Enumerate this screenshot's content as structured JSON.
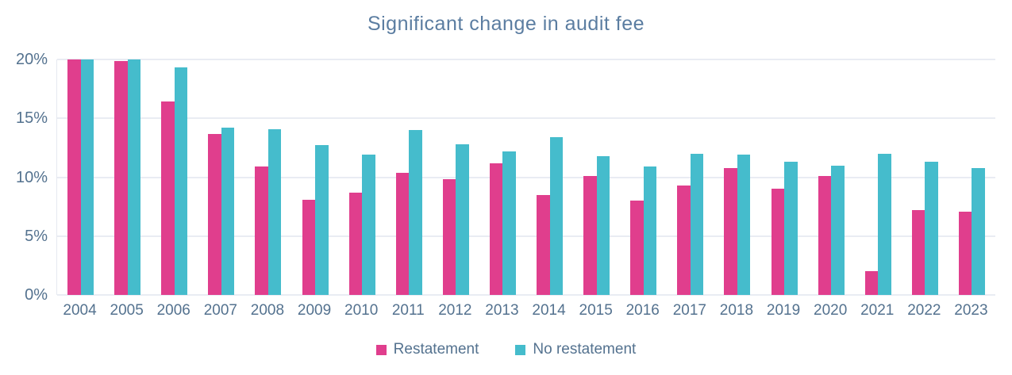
{
  "title": "Significant change in audit fee",
  "colors": {
    "restatement": "#e03e8d",
    "no_restatement": "#45bccc",
    "text": "#54728f",
    "title_text": "#5b7da1",
    "gridline": "#e9ecf3"
  },
  "chart_data": {
    "type": "bar",
    "title": "Significant change in audit fee",
    "categories": [
      "2004",
      "2005",
      "2006",
      "2007",
      "2008",
      "2009",
      "2010",
      "2011",
      "2012",
      "2013",
      "2014",
      "2015",
      "2016",
      "2017",
      "2018",
      "2019",
      "2020",
      "2021",
      "2022",
      "2023"
    ],
    "series": [
      {
        "name": "Restatement",
        "color": "#e03e8d",
        "values": [
          20.0,
          19.9,
          16.4,
          13.7,
          10.9,
          8.1,
          8.7,
          10.4,
          9.8,
          11.2,
          8.5,
          10.1,
          8.0,
          9.3,
          10.8,
          9.0,
          10.1,
          2.0,
          7.2,
          7.1
        ]
      },
      {
        "name": "No restatement",
        "color": "#45bccc",
        "values": [
          20.0,
          20.0,
          19.3,
          14.2,
          14.1,
          12.7,
          11.9,
          14.0,
          12.8,
          12.2,
          13.4,
          11.8,
          10.9,
          12.0,
          11.9,
          11.3,
          11.0,
          12.0,
          11.3,
          10.8
        ]
      }
    ],
    "xlabel": "",
    "ylabel": "",
    "ylim": [
      0,
      20
    ],
    "yticks": [
      {
        "value": 20,
        "label": "20%"
      },
      {
        "value": 15,
        "label": "15%"
      },
      {
        "value": 10,
        "label": "10%"
      },
      {
        "value": 5,
        "label": "5%"
      },
      {
        "value": 0,
        "label": "0%"
      }
    ],
    "grid": "horizontal",
    "legend_position": "bottom"
  }
}
